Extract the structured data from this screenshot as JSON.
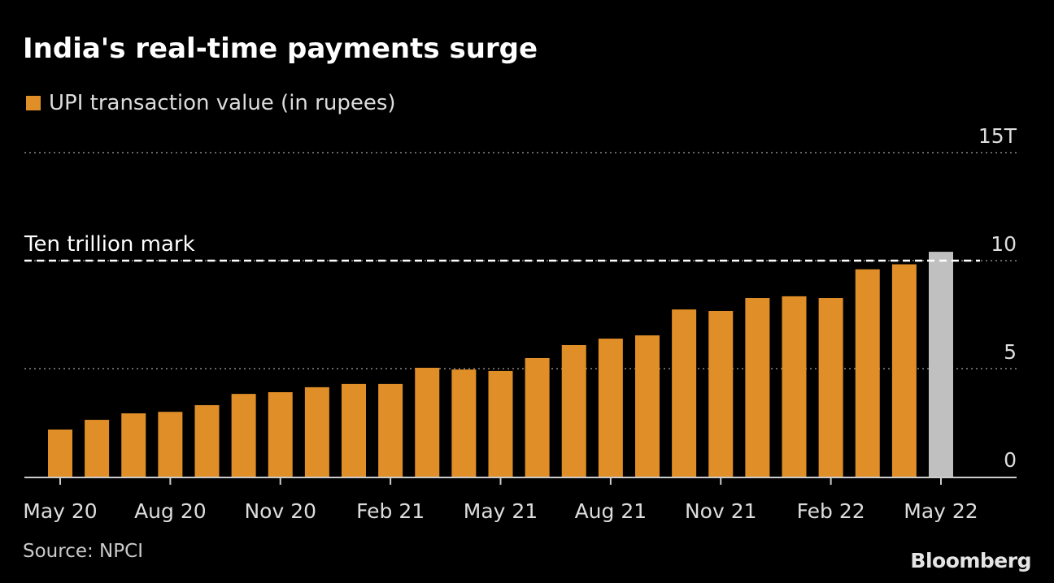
{
  "title": "India's real-time payments surge",
  "source": "Source: NPCI",
  "logo": "Bloomberg",
  "colors": {
    "bar": "#E08E27",
    "highlight": "#C0C0C0",
    "background": "#000000"
  },
  "chart_data": {
    "type": "bar",
    "title": "India's real-time payments surge",
    "legend": [
      "UPI transaction value (in rupees)"
    ],
    "legend_placement": "top-left",
    "categories": [
      "May 20",
      "Jun 20",
      "Jul 20",
      "Aug 20",
      "Sep 20",
      "Oct 20",
      "Nov 20",
      "Dec 20",
      "Jan 21",
      "Feb 21",
      "Mar 21",
      "Apr 21",
      "May 21",
      "Jun 21",
      "Jul 21",
      "Aug 21",
      "Sep 21",
      "Oct 21",
      "Nov 21",
      "Dec 21",
      "Jan 22",
      "Feb 22",
      "Mar 22",
      "Apr 22",
      "May 22"
    ],
    "values": [
      2.18,
      2.63,
      2.93,
      3.0,
      3.31,
      3.83,
      3.91,
      4.14,
      4.29,
      4.29,
      5.04,
      4.96,
      4.89,
      5.49,
      6.09,
      6.39,
      6.54,
      7.74,
      7.67,
      8.27,
      8.35,
      8.27,
      9.6,
      9.83,
      10.41
    ],
    "highlight_index": 24,
    "x_tick_labels": [
      "May 20",
      "Aug 20",
      "Nov 20",
      "Feb 21",
      "May 21",
      "Aug 21",
      "Nov 21",
      "Feb 22",
      "May 22"
    ],
    "x_tick_indices": [
      0,
      3,
      6,
      9,
      12,
      15,
      18,
      21,
      24
    ],
    "y_ticks": [
      0,
      5,
      10,
      15
    ],
    "y_tick_labels": [
      "0",
      "5",
      "10",
      "15T"
    ],
    "ylim": [
      0,
      15
    ],
    "unit": "trillion rupees",
    "annotation": {
      "label": "Ten trillion mark",
      "value": 10
    },
    "grid": true
  }
}
